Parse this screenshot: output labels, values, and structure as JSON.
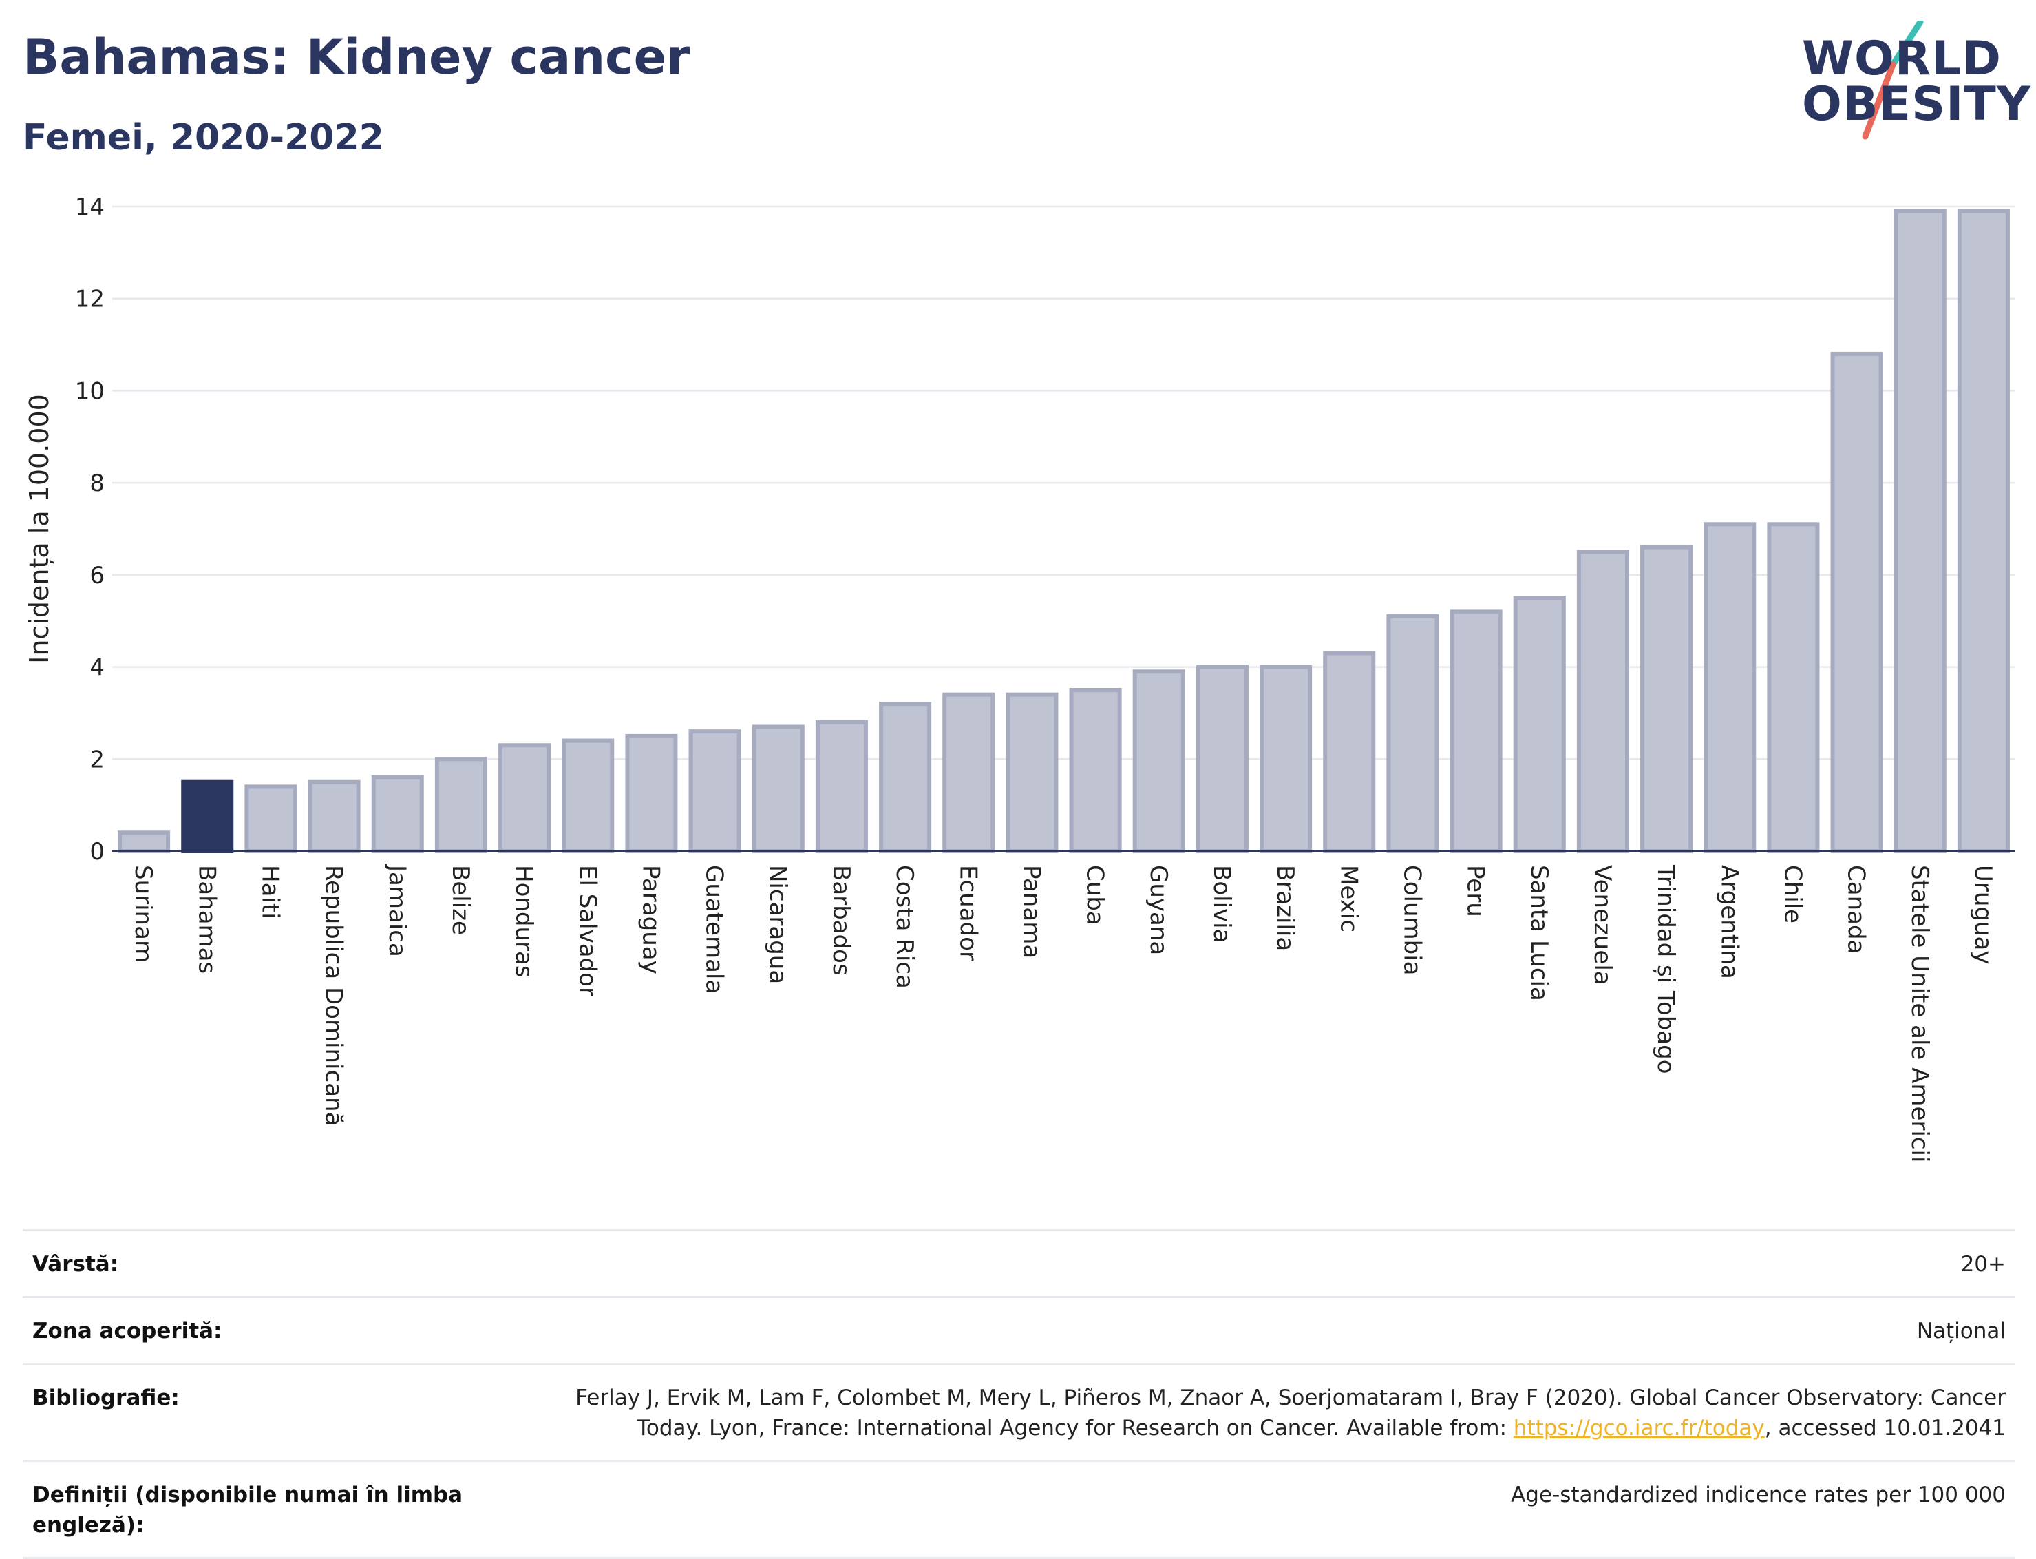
{
  "header": {
    "title": "Bahamas: Kidney cancer",
    "subtitle": "Femei, 2020-2022"
  },
  "logo": {
    "line1": "WORLD",
    "line2": "OBESITY",
    "slash_color_top": "#3bbfb4",
    "slash_color_bottom": "#e8685a"
  },
  "chart_data": {
    "type": "bar",
    "ylabel": "Incidența la 100.000",
    "ylim": [
      0,
      14
    ],
    "yticks": [
      0,
      2,
      4,
      6,
      8,
      10,
      12,
      14
    ],
    "grid": true,
    "highlight": "Bahamas",
    "highlight_color": "#2b3660",
    "bar_color": "#c0c4d2",
    "bar_edge_color": "#a7abc0",
    "categories": [
      "Surinam",
      "Bahamas",
      "Haiti",
      "Republica Dominicană",
      "Jamaica",
      "Belize",
      "Honduras",
      "El Salvador",
      "Paraguay",
      "Guatemala",
      "Nicaragua",
      "Barbados",
      "Costa Rica",
      "Ecuador",
      "Panama",
      "Cuba",
      "Guyana",
      "Bolivia",
      "Brazilia",
      "Mexic",
      "Columbia",
      "Peru",
      "Santa Lucia",
      "Venezuela",
      "Trinidad și Tobago",
      "Argentina",
      "Chile",
      "Canada",
      "Statele Unite ale Americii",
      "Uruguay"
    ],
    "values": [
      0.4,
      1.5,
      1.4,
      1.5,
      1.6,
      2.0,
      2.3,
      2.4,
      2.5,
      2.6,
      2.7,
      2.8,
      3.2,
      3.4,
      3.4,
      3.5,
      3.9,
      4.0,
      4.0,
      4.3,
      5.1,
      5.2,
      5.5,
      6.5,
      6.6,
      7.1,
      7.1,
      10.8,
      13.9,
      13.9
    ]
  },
  "meta": [
    {
      "label": "Vârstă:",
      "value": "20+"
    },
    {
      "label": "Zona acoperită:",
      "value": "Național"
    },
    {
      "label": "Bibliografie:",
      "value": "Ferlay J, Ervik M, Lam F, Colombet M, Mery L, Piñeros M, Znaor A, Soerjomataram I, Bray F (2020). Global Cancer Observatory: Cancer Today. Lyon, France: International Agency for Research on Cancer. Available from: ",
      "link": "https://gco.iarc.fr/today",
      "value_after": ", accessed 10.01.2041"
    },
    {
      "label": "Definiții (disponibile numai în limba engleză):",
      "value": "Age-standardized indicence rates per 100 000"
    }
  ]
}
